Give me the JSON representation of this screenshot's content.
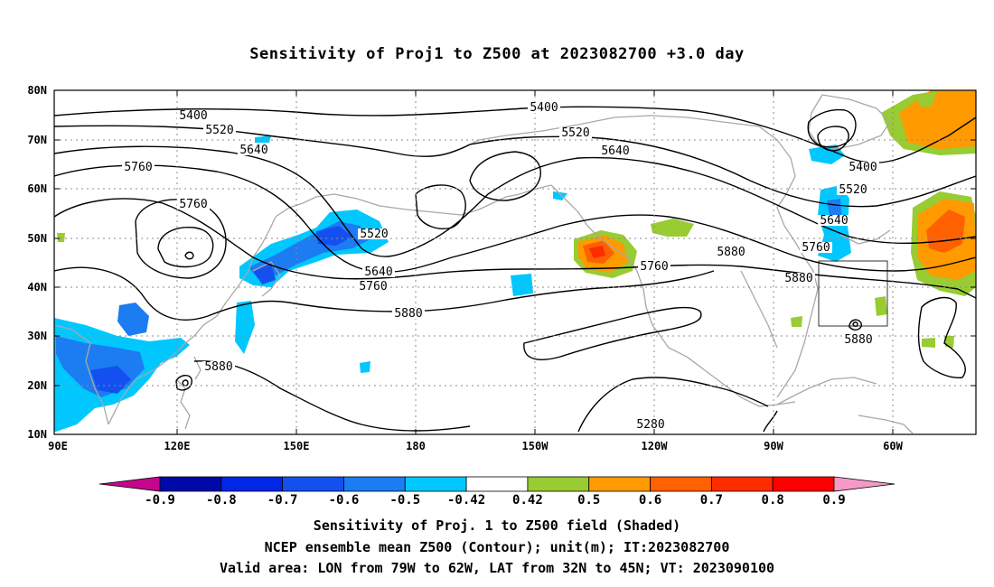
{
  "title": "Sensitivity of Proj1 to Z500 at 2023082700 +3.0 day",
  "map": {
    "lat_ticks": [
      "10N",
      "20N",
      "30N",
      "40N",
      "50N",
      "60N",
      "70N",
      "80N"
    ],
    "lon_ticks": [
      "90E",
      "120E",
      "150E",
      "180",
      "150W",
      "120W",
      "90W",
      "60W"
    ],
    "contour_labels": [
      "5400",
      "5520",
      "5640",
      "5760",
      "5760",
      "5400",
      "5520",
      "5640",
      "5520",
      "5640",
      "5760",
      "5880",
      "5880",
      "5760",
      "5880",
      "5280",
      "5400",
      "5520",
      "5640",
      "5760",
      "5880",
      "5880"
    ]
  },
  "colorbar": {
    "labels": [
      "-0.9",
      "-0.8",
      "-0.7",
      "-0.6",
      "-0.5",
      "-0.42",
      "0.42",
      "0.5",
      "0.6",
      "0.7",
      "0.8",
      "0.9"
    ],
    "colors": [
      "#c4068c",
      "#0008a8",
      "#0026e6",
      "#1450f0",
      "#1c7cf2",
      "#00c8ff",
      "#ffffff",
      "#98cc32",
      "#ff9a00",
      "#ff6000",
      "#ff2c00",
      "#ff0000",
      "#f49ac8"
    ]
  },
  "captions": [
    "Sensitivity of Proj. 1 to Z500 field (Shaded)",
    "NCEP ensemble mean Z500 (Contour); unit(m); IT:2023082700",
    "Valid area: LON from 79W to 62W, LAT from 32N to 45N; VT: 2023090100"
  ]
}
